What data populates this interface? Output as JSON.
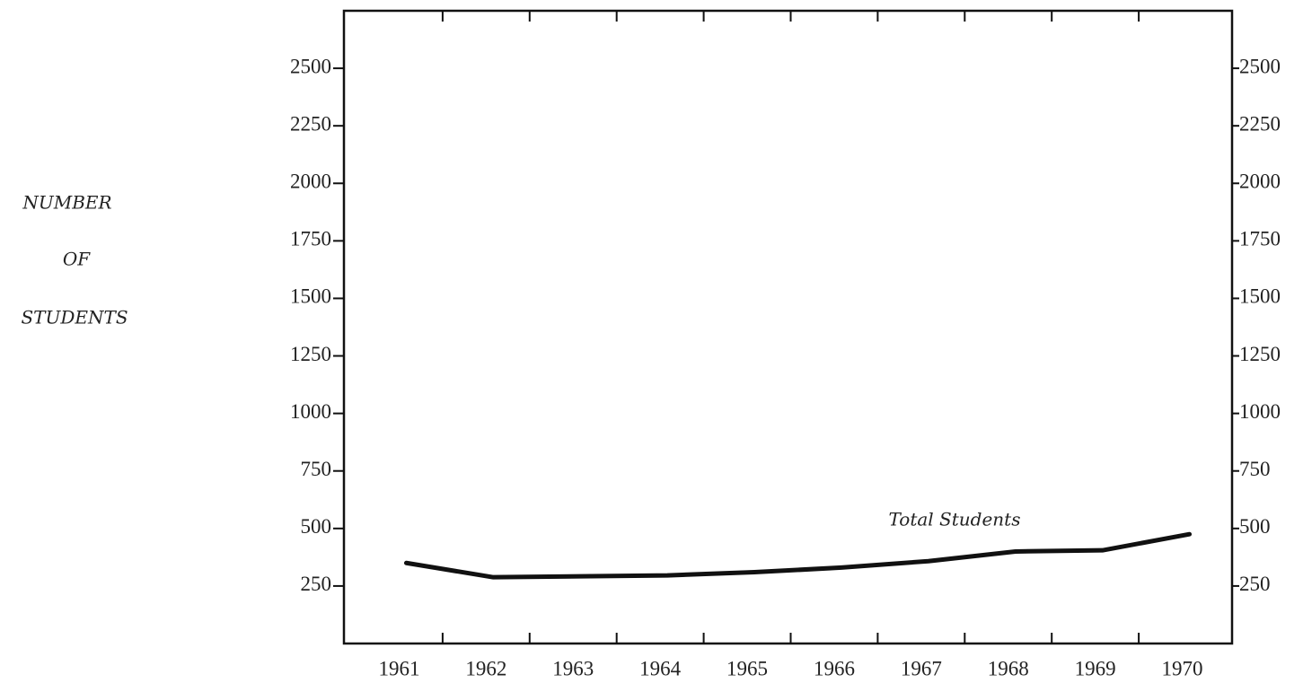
{
  "chart_data": {
    "type": "line",
    "ylabel": [
      "NUMBER",
      "OF",
      "STUDENTS"
    ],
    "annotation": "Total Students",
    "categories": [
      "1961",
      "1962",
      "1963",
      "1964",
      "1965",
      "1966",
      "1967",
      "1968",
      "1969",
      "1970"
    ],
    "series": [
      {
        "name": "Total Students",
        "color": "#111111",
        "values": [
          350,
          288,
          292,
          296,
          310,
          330,
          358,
          400,
          405,
          475
        ]
      }
    ],
    "ylim": [
      0,
      2750
    ],
    "yticks": [
      250,
      500,
      750,
      1000,
      1250,
      1500,
      1750,
      2000,
      2250,
      2500
    ],
    "y2lim": [
      0,
      2750
    ],
    "y2ticks": [
      250,
      500,
      750,
      1000,
      1250,
      1500,
      1750,
      2000,
      2250,
      2500
    ]
  }
}
